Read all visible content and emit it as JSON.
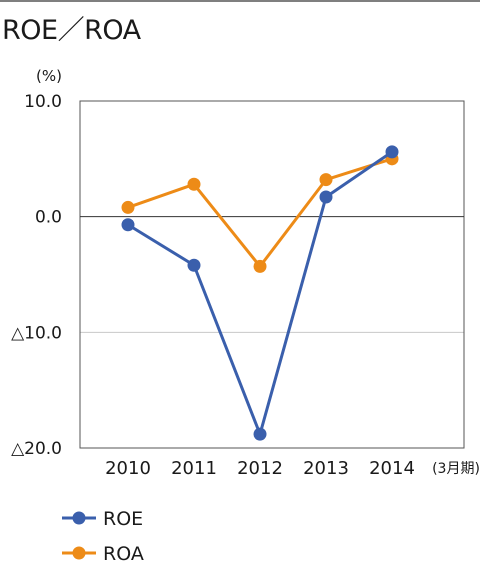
{
  "title": "ROE／ROA",
  "chart_data": {
    "type": "line",
    "title": "ROE／ROA",
    "unit_label": "(%)",
    "x_axis_label": "(3月期)",
    "categories": [
      "2010",
      "2011",
      "2012",
      "2013",
      "2014"
    ],
    "ylim": [
      -20,
      10
    ],
    "yticks": [
      {
        "value": 10,
        "label": "10.0"
      },
      {
        "value": 0,
        "label": "0.0"
      },
      {
        "value": -10,
        "label": "△10.0"
      },
      {
        "value": -20,
        "label": "△20.0"
      }
    ],
    "grid": true,
    "legend_position": "bottom-left",
    "series": [
      {
        "name": "ROE",
        "color": "#3a5fac",
        "values": [
          -0.7,
          -4.2,
          -18.8,
          1.7,
          5.6
        ]
      },
      {
        "name": "ROA",
        "color": "#ed8b17",
        "values": [
          0.8,
          2.8,
          -4.3,
          3.2,
          5.0
        ]
      }
    ]
  }
}
